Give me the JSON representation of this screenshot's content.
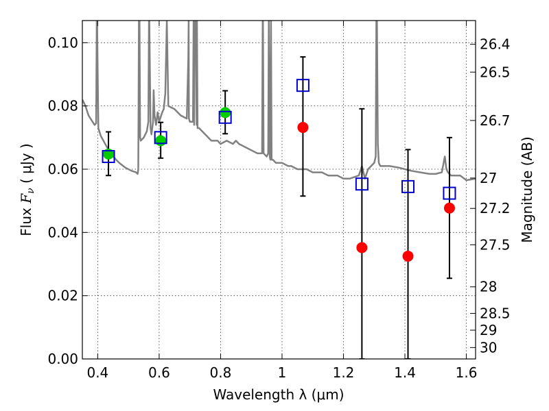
{
  "chart_data": {
    "type": "scatter",
    "xlabel": "Wavelength  λ (μm)",
    "ylabel": "Flux  F_ν  ( μJy )",
    "ylabel_parts": {
      "prefix": "Flux  ",
      "var": "F",
      "sub": "ν",
      "unit": "  ( μJy )"
    },
    "y2label": "Magnitude (AB)",
    "xlim": [
      0.35,
      1.63
    ],
    "ylim": [
      0.0,
      0.107
    ],
    "grid": true,
    "x_ticks": [
      0.4,
      0.6,
      0.8,
      1.0,
      1.2,
      1.4,
      1.6
    ],
    "x_tick_labels": [
      "0.4",
      "0.6",
      "0.8",
      "1",
      "1.2",
      "1.4",
      "1.6"
    ],
    "y_ticks": [
      0.0,
      0.02,
      0.04,
      0.06,
      0.08,
      0.1
    ],
    "y_tick_labels": [
      "0.00",
      "0.02",
      "0.04",
      "0.06",
      "0.08",
      "0.10"
    ],
    "right_ticks": [
      {
        "label": "26.4",
        "flux": 0.0995
      },
      {
        "label": "26.5",
        "flux": 0.0907
      },
      {
        "label": "26.7",
        "flux": 0.0754
      },
      {
        "label": "27",
        "flux": 0.0572
      },
      {
        "label": "27.2",
        "flux": 0.0476
      },
      {
        "label": "27.5",
        "flux": 0.0361
      },
      {
        "label": "28",
        "flux": 0.0228
      },
      {
        "label": "28.5",
        "flux": 0.0144
      },
      {
        "label": "29",
        "flux": 0.0091
      },
      {
        "label": "30",
        "flux": 0.0036
      }
    ],
    "colors": {
      "model": "#808080",
      "green_points": "#00cc00",
      "red_points": "#ff0000",
      "squares": "#0000cc",
      "errorbars": "#000000"
    },
    "series": [
      {
        "kind": "model-spectrum",
        "x": [
          0.35,
          0.36,
          0.37,
          0.38,
          0.39,
          0.395,
          0.397,
          0.398,
          0.402,
          0.41,
          0.43,
          0.45,
          0.47,
          0.49,
          0.51,
          0.525,
          0.53,
          0.532,
          0.534,
          0.536,
          0.538,
          0.54,
          0.55,
          0.56,
          0.565,
          0.567,
          0.568,
          0.572,
          0.575,
          0.58,
          0.582,
          0.585,
          0.59,
          0.595,
          0.6,
          0.61,
          0.615,
          0.62,
          0.625,
          0.63,
          0.65,
          0.67,
          0.69,
          0.695,
          0.696,
          0.697,
          0.7,
          0.71,
          0.712,
          0.713,
          0.714,
          0.716,
          0.72,
          0.722,
          0.723,
          0.725,
          0.73,
          0.75,
          0.77,
          0.79,
          0.8,
          0.82,
          0.84,
          0.85,
          0.86,
          0.88,
          0.9,
          0.92,
          0.935,
          0.937,
          0.938,
          0.94,
          0.95,
          0.955,
          0.957,
          0.96,
          0.962,
          0.964,
          0.966,
          0.97,
          0.98,
          1.0,
          1.02,
          1.03,
          1.05,
          1.08,
          1.1,
          1.13,
          1.15,
          1.18,
          1.2,
          1.22,
          1.25,
          1.26,
          1.27,
          1.28,
          1.29,
          1.3,
          1.305,
          1.307,
          1.309,
          1.312,
          1.315,
          1.32,
          1.35,
          1.38,
          1.4,
          1.42,
          1.45,
          1.48,
          1.5,
          1.52,
          1.53,
          1.535,
          1.54,
          1.55,
          1.58,
          1.6,
          1.63
        ],
        "y": [
          0.082,
          0.08,
          0.077,
          0.0755,
          0.074,
          0.0745,
          0.107,
          0.107,
          0.073,
          0.0705,
          0.067,
          0.064,
          0.062,
          0.0605,
          0.0595,
          0.059,
          0.0585,
          0.06,
          0.107,
          0.107,
          0.07,
          0.069,
          0.07,
          0.072,
          0.075,
          0.107,
          0.107,
          0.073,
          0.071,
          0.075,
          0.085,
          0.077,
          0.074,
          0.078,
          0.075,
          0.078,
          0.079,
          0.084,
          0.107,
          0.08,
          0.079,
          0.077,
          0.076,
          0.095,
          0.107,
          0.076,
          0.075,
          0.075,
          0.107,
          0.107,
          0.074,
          0.107,
          0.107,
          0.074,
          0.107,
          0.073,
          0.073,
          0.071,
          0.069,
          0.069,
          0.068,
          0.069,
          0.068,
          0.069,
          0.068,
          0.067,
          0.066,
          0.065,
          0.065,
          0.107,
          0.107,
          0.065,
          0.064,
          0.065,
          0.107,
          0.064,
          0.063,
          0.107,
          0.063,
          0.063,
          0.062,
          0.062,
          0.061,
          0.061,
          0.06,
          0.06,
          0.059,
          0.059,
          0.058,
          0.058,
          0.057,
          0.057,
          0.058,
          0.061,
          0.057,
          0.06,
          0.061,
          0.062,
          0.064,
          0.107,
          0.107,
          0.068,
          0.062,
          0.061,
          0.061,
          0.0605,
          0.06,
          0.0595,
          0.059,
          0.0585,
          0.0585,
          0.059,
          0.064,
          0.06,
          0.059,
          0.058,
          0.058,
          0.0565,
          0.057
        ]
      },
      {
        "kind": "green-points",
        "x": [
          0.435,
          0.605,
          0.815
        ],
        "y": [
          0.0648,
          0.069,
          0.0779
        ]
      },
      {
        "kind": "red-points",
        "x": [
          1.068,
          1.26,
          1.41,
          1.545
        ],
        "y": [
          0.0732,
          0.0352,
          0.0325,
          0.0477
        ]
      },
      {
        "kind": "squares-with-errorbars",
        "x": [
          0.435,
          0.605,
          0.815,
          1.068,
          1.26,
          1.41,
          1.545
        ],
        "y": [
          0.064,
          0.07,
          0.0764,
          0.0865,
          0.0553,
          0.0545,
          0.0524
        ],
        "err_low": [
          0.058,
          0.0635,
          0.0712,
          0.0515,
          0.0,
          0.0,
          0.0255
        ],
        "err_high": [
          0.0718,
          0.0748,
          0.0848,
          0.0955,
          0.0791,
          0.0662,
          0.07
        ]
      }
    ]
  }
}
